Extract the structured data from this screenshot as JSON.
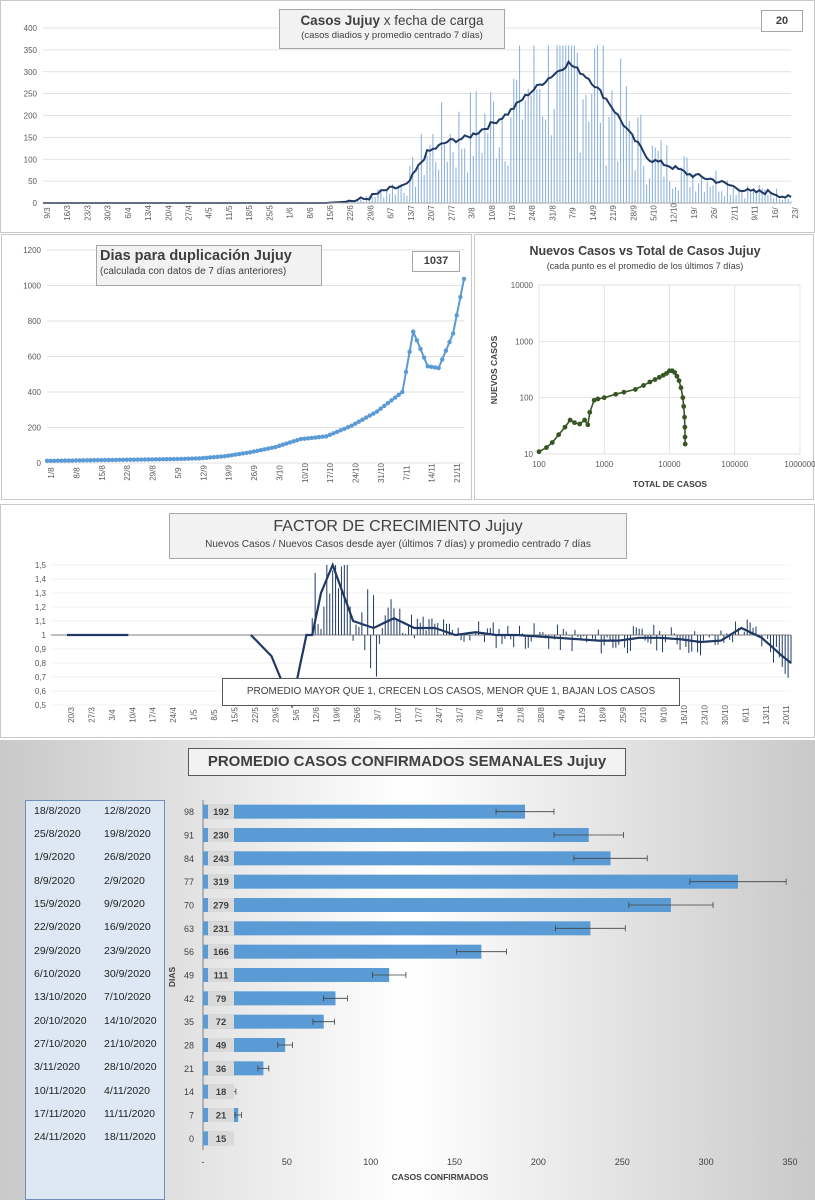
{
  "chart1": {
    "title_bold": "Casos Jujuy",
    "title_rest": "x fecha de carga",
    "subtitle": "(casos diadios y promedio  centrado 7 días)",
    "badge": "20",
    "yticks": [
      "0",
      "50",
      "100",
      "150",
      "200",
      "250",
      "300",
      "350",
      "400"
    ],
    "xticks": [
      "9/3",
      "16/3",
      "23/3",
      "30/3",
      "6/4",
      "13/4",
      "20/4",
      "27/4",
      "4/5",
      "11/5",
      "18/5",
      "25/5",
      "1/6",
      "8/6",
      "15/6",
      "22/6",
      "29/6",
      "6/7",
      "13/7",
      "20/7",
      "27/7",
      "3/8",
      "10/8",
      "17/8",
      "24/8",
      "31/8",
      "7/9",
      "14/9",
      "21/9",
      "28/9",
      "5/10",
      "12/10",
      "19/",
      "26/",
      "2/11",
      "9/11",
      "16/",
      "23/"
    ]
  },
  "chart2": {
    "title": "Dias para duplicación Jujuy",
    "subtitle": "(calculada con datos de 7 días anteriores)",
    "badge": "1037",
    "yticks": [
      "0",
      "200",
      "400",
      "600",
      "800",
      "1000",
      "1200"
    ],
    "xticks": [
      "1/8",
      "8/8",
      "15/8",
      "22/8",
      "29/8",
      "5/9",
      "12/9",
      "19/9",
      "26/9",
      "3/10",
      "10/10",
      "17/10",
      "24/10",
      "31/10",
      "7/11",
      "14/11",
      "21/11"
    ]
  },
  "chart3": {
    "title": "Nuevos Casos vs Total de Casos Jujuy",
    "subtitle": "(cada punto es el promedio de los últimos 7 días)",
    "ylabel": "NUEVOS CASOS",
    "xlabel": "TOTAL DE CASOS",
    "yticks": [
      "10",
      "100",
      "1000",
      "10000"
    ],
    "xticks": [
      "100",
      "1000",
      "10000",
      "100000",
      "1000000"
    ]
  },
  "chart4": {
    "title": "FACTOR DE CRECIMIENTO Jujuy",
    "subtitle": "Nuevos Casos  / Nuevos Casos desde ayer (últimos 7 días) y promedio  centrado 7 días",
    "note": "PROMEDIO MAYOR QUE 1, CRECEN LOS CASOS, MENOR QUE 1, BAJAN LOS CASOS",
    "yticks": [
      "0,5",
      "0,6",
      "0,7",
      "0,8",
      "0,9",
      "1",
      "1,1",
      "1,2",
      "1,3",
      "1,4",
      "1,5"
    ],
    "xticks": [
      "20/3",
      "27/3",
      "3/4",
      "10/4",
      "17/4",
      "24/4",
      "1/5",
      "8/5",
      "15/5",
      "22/5",
      "29/5",
      "5/6",
      "12/6",
      "19/6",
      "26/6",
      "3/7",
      "10/7",
      "17/7",
      "24/7",
      "31/7",
      "7/8",
      "14/8",
      "21/8",
      "28/8",
      "4/9",
      "11/9",
      "18/9",
      "25/9",
      "2/10",
      "9/10",
      "16/10",
      "23/10",
      "30/10",
      "6/11",
      "13/11",
      "20/11"
    ]
  },
  "chart5": {
    "title": "PROMEDIO CASOS CONFIRMADOS SEMANALES Jujuy",
    "ylabel": "DIAS",
    "xlabel": "CASOS CONFIRMADOS",
    "xticks": [
      "-",
      "50",
      "100",
      "150",
      "200",
      "250",
      "300",
      "350"
    ],
    "weeks": [
      {
        "end": "18/8/2020",
        "start": "12/8/2020",
        "days": "98",
        "value": "192"
      },
      {
        "end": "25/8/2020",
        "start": "19/8/2020",
        "days": "91",
        "value": "230"
      },
      {
        "end": "1/9/2020",
        "start": "26/8/2020",
        "days": "84",
        "value": "243"
      },
      {
        "end": "8/9/2020",
        "start": "2/9/2020",
        "days": "77",
        "value": "319"
      },
      {
        "end": "15/9/2020",
        "start": "9/9/2020",
        "days": "70",
        "value": "279"
      },
      {
        "end": "22/9/2020",
        "start": "16/9/2020",
        "days": "63",
        "value": "231"
      },
      {
        "end": "29/9/2020",
        "start": "23/9/2020",
        "days": "56",
        "value": "166"
      },
      {
        "end": "6/10/2020",
        "start": "30/9/2020",
        "days": "49",
        "value": "111"
      },
      {
        "end": "13/10/2020",
        "start": "7/10/2020",
        "days": "42",
        "value": "79"
      },
      {
        "end": "20/10/2020",
        "start": "14/10/2020",
        "days": "35",
        "value": "72"
      },
      {
        "end": "27/10/2020",
        "start": "21/10/2020",
        "days": "28",
        "value": "49"
      },
      {
        "end": "3/11/2020",
        "start": "28/10/2020",
        "days": "21",
        "value": "36"
      },
      {
        "end": "10/11/2020",
        "start": "4/11/2020",
        "days": "14",
        "value": "18"
      },
      {
        "end": "17/11/2020",
        "start": "11/11/2020",
        "days": "7",
        "value": "21"
      },
      {
        "end": "24/11/2020",
        "start": "18/11/2020",
        "days": "0",
        "value": "15"
      }
    ]
  },
  "chart_data": [
    {
      "type": "bar",
      "title": "Casos Jujuy x fecha de carga",
      "ylim": [
        0,
        400
      ],
      "x_range": [
        "9/3",
        "23/11"
      ],
      "series": [
        {
          "name": "casos diarios",
          "style": "bars"
        },
        {
          "name": "promedio centrado 7 días",
          "style": "line",
          "x": [
            "9/3",
            "15/6",
            "22/6",
            "29/6",
            "6/7",
            "13/7",
            "20/7",
            "27/7",
            "3/8",
            "10/8",
            "17/8",
            "24/8",
            "31/8",
            "7/9",
            "14/9",
            "21/9",
            "28/9",
            "5/10",
            "12/10",
            "19/10",
            "26/10",
            "2/11",
            "9/11",
            "16/11",
            "23/11"
          ],
          "values": [
            0,
            0,
            3,
            10,
            30,
            40,
            115,
            140,
            150,
            175,
            205,
            250,
            285,
            320,
            285,
            230,
            160,
            100,
            85,
            65,
            55,
            40,
            25,
            25,
            10
          ]
        }
      ]
    },
    {
      "type": "line",
      "title": "Dias para duplicación Jujuy",
      "ylim": [
        0,
        1200
      ],
      "x": [
        "1/8",
        "8/8",
        "15/8",
        "22/8",
        "29/8",
        "5/9",
        "12/9",
        "19/9",
        "26/9",
        "3/10",
        "10/10",
        "17/10",
        "24/10",
        "31/10",
        "7/11",
        "10/11",
        "14/11",
        "17/11",
        "21/11",
        "24/11"
      ],
      "values": [
        12,
        14,
        16,
        18,
        20,
        22,
        26,
        38,
        60,
        90,
        135,
        150,
        210,
        290,
        400,
        740,
        545,
        535,
        730,
        1037
      ]
    },
    {
      "type": "scatter",
      "title": "Nuevos Casos vs Total de Casos Jujuy",
      "xscale": "log",
      "yscale": "log",
      "xlim": [
        100,
        1000000
      ],
      "ylim": [
        10,
        10000
      ],
      "x": [
        100,
        130,
        160,
        200,
        250,
        300,
        350,
        420,
        500,
        560,
        600,
        700,
        800,
        1000,
        1500,
        2000,
        3000,
        4000,
        5000,
        6000,
        7000,
        8000,
        9000,
        10000,
        11000,
        12000,
        13000,
        14000,
        15000,
        16000,
        16500,
        17000,
        17200,
        17300,
        17400
      ],
      "y": [
        11,
        13,
        16,
        22,
        30,
        40,
        36,
        34,
        40,
        33,
        55,
        90,
        95,
        100,
        115,
        125,
        140,
        165,
        190,
        210,
        230,
        250,
        270,
        300,
        300,
        280,
        240,
        200,
        150,
        100,
        70,
        45,
        30,
        20,
        15
      ]
    },
    {
      "type": "bar",
      "title": "FACTOR DE CRECIMIENTO Jujuy",
      "ylim": [
        0.5,
        1.5
      ],
      "baseline": 1,
      "series": [
        {
          "name": "promedio centrado 7 días",
          "style": "line",
          "x": [
            "20/3",
            "10/4",
            "22/5",
            "29/5",
            "5/6",
            "10/6",
            "12/6",
            "15/6",
            "19/6",
            "26/6",
            "3/7",
            "10/7",
            "17/7",
            "24/7",
            "31/7",
            "7/8",
            "14/8",
            "21/8",
            "28/8",
            "4/9",
            "11/9",
            "18/9",
            "25/9",
            "2/10",
            "9/10",
            "16/10",
            "23/10",
            "30/10",
            "6/11",
            "13/11",
            "20/11",
            "23/11"
          ],
          "values": [
            1,
            1,
            1,
            0.85,
            0.5,
            1,
            1,
            1.3,
            1.5,
            1.1,
            1.05,
            1.12,
            1.05,
            1.05,
            1,
            1.02,
            1.0,
            1.0,
            0.99,
            0.98,
            0.97,
            0.96,
            0.96,
            0.98,
            0.98,
            0.97,
            0.95,
            0.96,
            1.05,
            0.98,
            0.85,
            0.8
          ]
        }
      ]
    },
    {
      "type": "bar",
      "orientation": "horizontal",
      "title": "PROMEDIO CASOS CONFIRMADOS SEMANALES Jujuy",
      "xlabel": "CASOS CONFIRMADOS",
      "ylabel": "DIAS",
      "categories": [
        "98",
        "91",
        "84",
        "77",
        "70",
        "63",
        "56",
        "49",
        "42",
        "35",
        "28",
        "21",
        "14",
        "7",
        "0"
      ],
      "values": [
        192,
        230,
        243,
        319,
        279,
        231,
        166,
        111,
        79,
        72,
        49,
        36,
        18,
        21,
        15
      ],
      "xlim": [
        0,
        350
      ]
    }
  ]
}
